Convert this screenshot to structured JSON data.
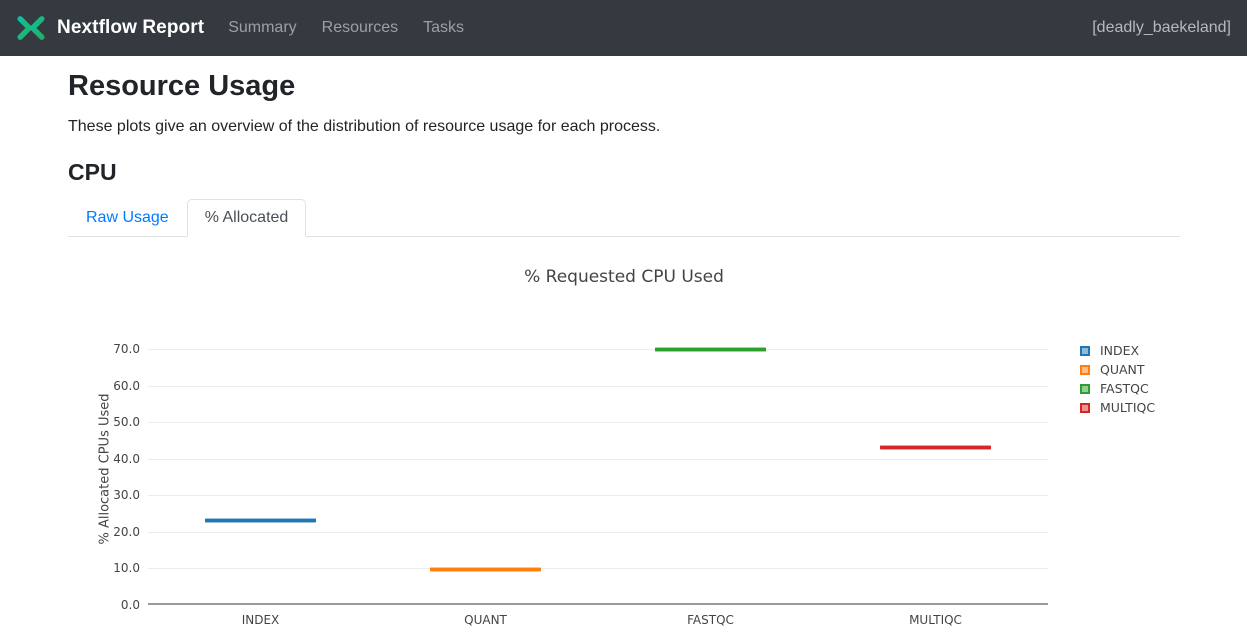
{
  "header": {
    "brand": "Nextflow Report",
    "nav": [
      {
        "label": "Summary"
      },
      {
        "label": "Resources"
      },
      {
        "label": "Tasks"
      }
    ],
    "run_name": "[deadly_baekeland]",
    "logo_colors": {
      "teal": "#0dc09d",
      "green": "#26af64"
    }
  },
  "page": {
    "title": "Resource Usage",
    "subtitle": "These plots give an overview of the distribution of resource usage for each process.",
    "section": "CPU"
  },
  "tabs": [
    {
      "label": "Raw Usage",
      "active": false
    },
    {
      "label": "% Allocated",
      "active": true
    }
  ],
  "chart_data": {
    "type": "box",
    "title": "% Requested CPU Used",
    "ylabel": "% Allocated CPUs Used",
    "xlabel": "",
    "categories": [
      "INDEX",
      "QUANT",
      "FASTQC",
      "MULTIQC"
    ],
    "series": [
      {
        "name": "INDEX",
        "value": 23.0,
        "color": "#1f77b4"
      },
      {
        "name": "QUANT",
        "value": 9.6,
        "color": "#ff7f0e"
      },
      {
        "name": "FASTQC",
        "value": 69.8,
        "color": "#2ca02c"
      },
      {
        "name": "MULTIQC",
        "value": 43.0,
        "color": "#d62728"
      }
    ],
    "yticks": [
      0,
      10,
      20,
      30,
      40,
      50,
      60,
      70
    ],
    "ytick_labels": [
      "0.0",
      "10.0",
      "20.0",
      "30.0",
      "40.0",
      "50.0",
      "60.0",
      "70.0"
    ],
    "ylim": [
      0,
      74.4
    ],
    "grid": true,
    "legend_position": "right"
  }
}
